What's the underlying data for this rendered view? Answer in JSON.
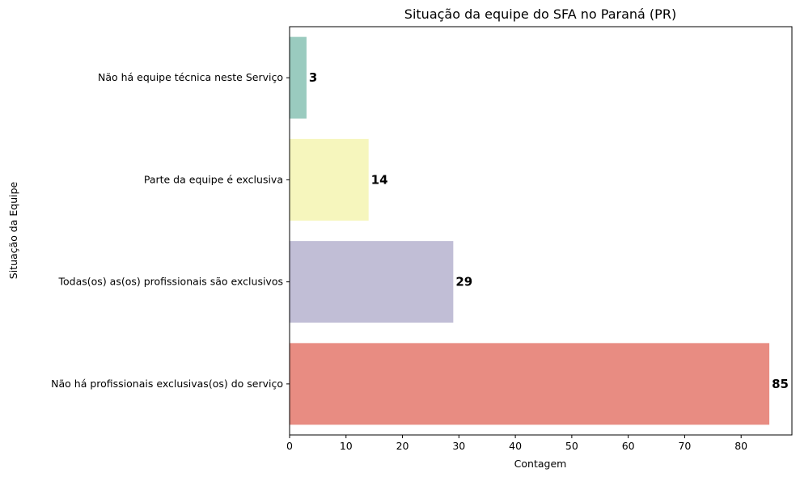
{
  "chart_data": {
    "type": "bar",
    "orientation": "horizontal",
    "title": "Situação da equipe do SFA no Paraná (PR)",
    "xlabel": "Contagem",
    "ylabel": "Situação da Equipe",
    "categories": [
      "Não há equipe técnica neste Serviço",
      "Parte da equipe é exclusiva",
      "Todas(os) as(os) profissionais são exclusivos",
      "Não há profissionais exclusivas(os) do serviço"
    ],
    "values": [
      3,
      14,
      29,
      85
    ],
    "data_labels": [
      "3",
      "14",
      "29",
      "85"
    ],
    "colors": [
      "#9acbbf",
      "#f6f6bd",
      "#c1bed6",
      "#e88c82"
    ],
    "xlim": [
      0,
      89
    ],
    "xticks": [
      0,
      10,
      20,
      30,
      40,
      50,
      60,
      70,
      80
    ],
    "xtick_labels": [
      "0",
      "10",
      "20",
      "30",
      "40",
      "50",
      "60",
      "70",
      "80"
    ],
    "grid": false,
    "legend": "none"
  }
}
